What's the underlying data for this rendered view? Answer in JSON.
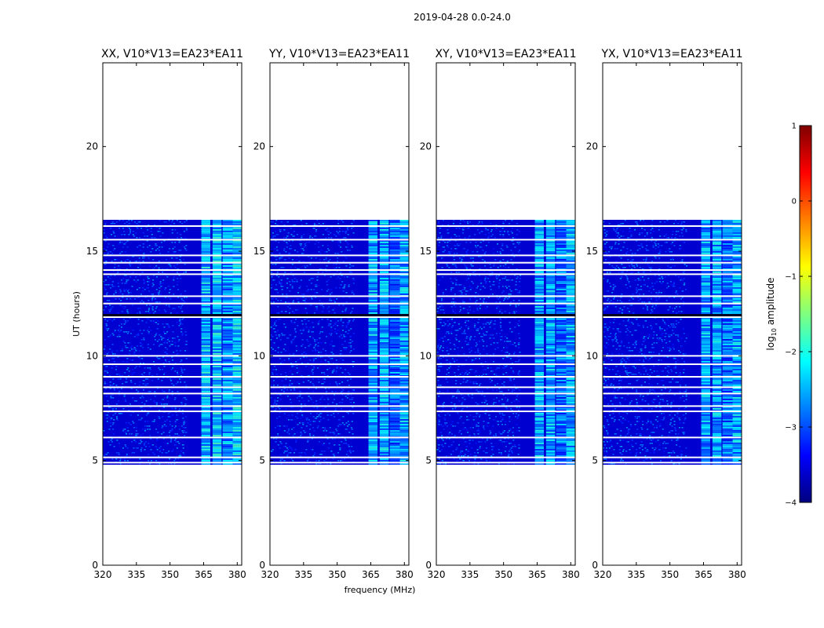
{
  "figure": {
    "suptitle": "2019-04-28 0.0-24.0",
    "xlabel": "frequency (MHz)",
    "ylabel": "UT (hours)"
  },
  "colorbar": {
    "label": "log10 amplitude",
    "label_main": "log",
    "label_sub": "10",
    "label_tail": " amplitude",
    "range": [
      -4,
      1
    ],
    "ticks": [
      "1",
      "0",
      "−1",
      "−2",
      "−3",
      "−4"
    ],
    "tick_values": [
      1,
      0,
      -1,
      -2,
      -3,
      -4
    ],
    "colormap": "jet",
    "colors": [
      "#00007f",
      "#0000ff",
      "#007fff",
      "#00ffff",
      "#7fff7f",
      "#ffff00",
      "#ff7f00",
      "#ff0000",
      "#7f0000"
    ]
  },
  "chart_data": [
    {
      "type": "heatmap",
      "title": "XX, V10*V13=EA23*EA11",
      "xlabel": "frequency (MHz)",
      "ylabel": "UT (hours)",
      "xlim": [
        320,
        382
      ],
      "ylim": [
        0,
        24
      ],
      "xticks": [
        "320",
        "335",
        "350",
        "365",
        "380"
      ],
      "xtick_values": [
        320,
        335,
        350,
        365,
        380
      ],
      "yticks": [
        "0",
        "5",
        "10",
        "15",
        "20"
      ],
      "ytick_values": [
        0,
        5,
        10,
        15,
        20
      ],
      "data_time_range": [
        4.8,
        16.5
      ],
      "background_log_amplitude": -3.6,
      "bright_channels": [
        {
          "freq_range": [
            364,
            368
          ],
          "log_amplitude": -2.2
        },
        {
          "freq_range": [
            369,
            373
          ],
          "log_amplitude": -2.1
        },
        {
          "freq_range": [
            373.5,
            378
          ],
          "log_amplitude": -2.4
        },
        {
          "freq_range": [
            378,
            382
          ],
          "log_amplitude": -2.1
        }
      ],
      "flagged_gap_hours": [
        4.9,
        5.15,
        6.1,
        7.35,
        7.6,
        8.2,
        8.5,
        9.0,
        9.6,
        10.0,
        11.85,
        12.5,
        12.85,
        13.9,
        14.1,
        14.45,
        14.8,
        15.55,
        16.2
      ]
    },
    {
      "type": "heatmap",
      "title": "YY, V10*V13=EA23*EA11",
      "xlabel": "frequency (MHz)",
      "ylabel": "UT (hours)",
      "xlim": [
        320,
        382
      ],
      "ylim": [
        0,
        24
      ],
      "xticks": [
        "320",
        "335",
        "350",
        "365",
        "380"
      ],
      "xtick_values": [
        320,
        335,
        350,
        365,
        380
      ],
      "yticks": [
        "0",
        "5",
        "10",
        "15",
        "20"
      ],
      "ytick_values": [
        0,
        5,
        10,
        15,
        20
      ],
      "data_time_range": [
        4.8,
        16.5
      ],
      "background_log_amplitude": -3.6,
      "bright_channels": [
        {
          "freq_range": [
            364,
            368
          ],
          "log_amplitude": -2.3
        },
        {
          "freq_range": [
            369,
            373
          ],
          "log_amplitude": -2.3
        },
        {
          "freq_range": [
            373.5,
            378
          ],
          "log_amplitude": -2.6
        },
        {
          "freq_range": [
            378,
            382
          ],
          "log_amplitude": -2.3
        }
      ],
      "flagged_gap_hours": [
        4.9,
        5.15,
        6.1,
        7.35,
        7.6,
        8.2,
        8.5,
        9.0,
        9.6,
        10.0,
        11.85,
        12.5,
        12.85,
        13.9,
        14.1,
        14.45,
        14.8,
        15.55,
        16.2
      ]
    },
    {
      "type": "heatmap",
      "title": "XY, V10*V13=EA23*EA11",
      "xlabel": "frequency (MHz)",
      "ylabel": "UT (hours)",
      "xlim": [
        320,
        382
      ],
      "ylim": [
        0,
        24
      ],
      "xticks": [
        "320",
        "335",
        "350",
        "365",
        "380"
      ],
      "xtick_values": [
        320,
        335,
        350,
        365,
        380
      ],
      "yticks": [
        "0",
        "5",
        "10",
        "15",
        "20"
      ],
      "ytick_values": [
        0,
        5,
        10,
        15,
        20
      ],
      "data_time_range": [
        4.8,
        16.5
      ],
      "background_log_amplitude": -3.6,
      "bright_channels": [
        {
          "freq_range": [
            364,
            368
          ],
          "log_amplitude": -2.3
        },
        {
          "freq_range": [
            369,
            373
          ],
          "log_amplitude": -2.3
        },
        {
          "freq_range": [
            373.5,
            378
          ],
          "log_amplitude": -2.6
        },
        {
          "freq_range": [
            378,
            382
          ],
          "log_amplitude": -2.3
        }
      ],
      "flagged_gap_hours": [
        4.9,
        5.15,
        6.1,
        7.35,
        7.6,
        8.2,
        8.5,
        9.0,
        9.6,
        10.0,
        11.85,
        12.5,
        12.85,
        13.9,
        14.1,
        14.45,
        14.8,
        15.55,
        16.2
      ]
    },
    {
      "type": "heatmap",
      "title": "YX, V10*V13=EA23*EA11",
      "xlabel": "frequency (MHz)",
      "ylabel": "UT (hours)",
      "xlim": [
        320,
        382
      ],
      "ylim": [
        0,
        24
      ],
      "xticks": [
        "320",
        "335",
        "350",
        "365",
        "380"
      ],
      "xtick_values": [
        320,
        335,
        350,
        365,
        380
      ],
      "yticks": [
        "0",
        "5",
        "10",
        "15",
        "20"
      ],
      "ytick_values": [
        0,
        5,
        10,
        15,
        20
      ],
      "data_time_range": [
        4.8,
        16.5
      ],
      "background_log_amplitude": -3.6,
      "bright_channels": [
        {
          "freq_range": [
            364,
            368
          ],
          "log_amplitude": -2.3
        },
        {
          "freq_range": [
            369,
            373
          ],
          "log_amplitude": -2.3
        },
        {
          "freq_range": [
            373.5,
            378
          ],
          "log_amplitude": -2.6
        },
        {
          "freq_range": [
            378,
            382
          ],
          "log_amplitude": -2.3
        }
      ],
      "flagged_gap_hours": [
        4.9,
        5.15,
        6.1,
        7.35,
        7.6,
        8.2,
        8.5,
        9.0,
        9.6,
        10.0,
        11.85,
        12.5,
        12.85,
        13.9,
        14.1,
        14.45,
        14.8,
        15.55,
        16.2
      ]
    }
  ]
}
